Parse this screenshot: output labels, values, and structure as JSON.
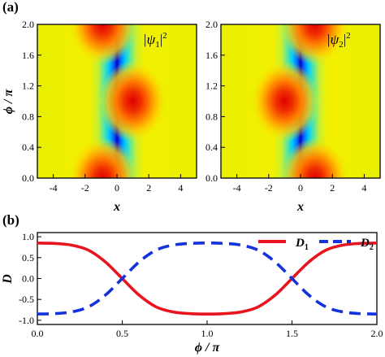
{
  "chart_data": [
    {
      "panel_label": "(a)",
      "type": "heatmap",
      "title": "",
      "xlabel": "x",
      "ylabel": "ϕ / π",
      "xlim": [
        -5,
        5
      ],
      "ylim": [
        0.0,
        2.0
      ],
      "xticks": [
        "-4",
        "-2",
        "0",
        "2",
        "4"
      ],
      "yticks": [
        "0.0",
        "0.4",
        "0.8",
        "1.2",
        "1.6",
        "2.0"
      ],
      "colormap": [
        "#0000c8",
        "#0a64ff",
        "#00c8ff",
        "#50e6aa",
        "#c8f032",
        "#f0f000",
        "#ffc800",
        "#ff7800",
        "#e60000"
      ],
      "panels": [
        {
          "name": "|ψ1|²",
          "label_base": "|ψ",
          "label_sub": "1",
          "label_end": "|",
          "label_sup": "2",
          "hot_spots": [
            {
              "x": 1.0,
              "phi": 1.0,
              "peak": 1.0
            },
            {
              "x": -0.9,
              "phi": 0.0,
              "peak": 1.0
            },
            {
              "x": -0.9,
              "phi": 2.0,
              "peak": 1.0
            }
          ]
        },
        {
          "name": "|ψ2|²",
          "label_base": "|ψ",
          "label_sub": "2",
          "label_end": "|",
          "label_sup": "2",
          "hot_spots": [
            {
              "x": -1.0,
              "phi": 1.0,
              "peak": 1.0
            },
            {
              "x": 0.9,
              "phi": 0.0,
              "peak": 1.0
            },
            {
              "x": 0.9,
              "phi": 2.0,
              "peak": 1.0
            }
          ]
        }
      ]
    },
    {
      "panel_label": "(b)",
      "type": "line",
      "title": "",
      "xlabel": "ϕ / π",
      "ylabel": "D",
      "xlim": [
        0.0,
        2.0
      ],
      "ylim": [
        -1.1,
        1.1
      ],
      "xticks": [
        "0.0",
        "0.5",
        "1.0",
        "1.5",
        "2.0"
      ],
      "yticks": [
        "1.0",
        "0.5",
        "0.0",
        "-0.5",
        "-1.0"
      ],
      "legend_position": "top-right",
      "x": [
        0.0,
        0.1,
        0.2,
        0.3,
        0.4,
        0.5,
        0.6,
        0.7,
        0.8,
        0.9,
        1.0,
        1.1,
        1.2,
        1.3,
        1.4,
        1.5,
        1.6,
        1.7,
        1.8,
        1.9,
        2.0
      ],
      "series": [
        {
          "name": "D1",
          "name_base": "D",
          "name_sub": "1",
          "color": "#e8141e",
          "style": "solid",
          "values": [
            0.85,
            0.84,
            0.8,
            0.68,
            0.4,
            0.0,
            -0.4,
            -0.68,
            -0.8,
            -0.84,
            -0.85,
            -0.84,
            -0.8,
            -0.68,
            -0.4,
            0.0,
            0.4,
            0.68,
            0.8,
            0.84,
            0.85
          ]
        },
        {
          "name": "D2",
          "name_base": "D",
          "name_sub": "2",
          "color": "#1432dc",
          "style": "dashed",
          "values": [
            -0.85,
            -0.84,
            -0.8,
            -0.68,
            -0.4,
            0.0,
            0.4,
            0.68,
            0.8,
            0.84,
            0.85,
            0.84,
            0.8,
            0.68,
            0.4,
            0.0,
            -0.4,
            -0.68,
            -0.8,
            -0.84,
            -0.85
          ]
        }
      ]
    }
  ]
}
